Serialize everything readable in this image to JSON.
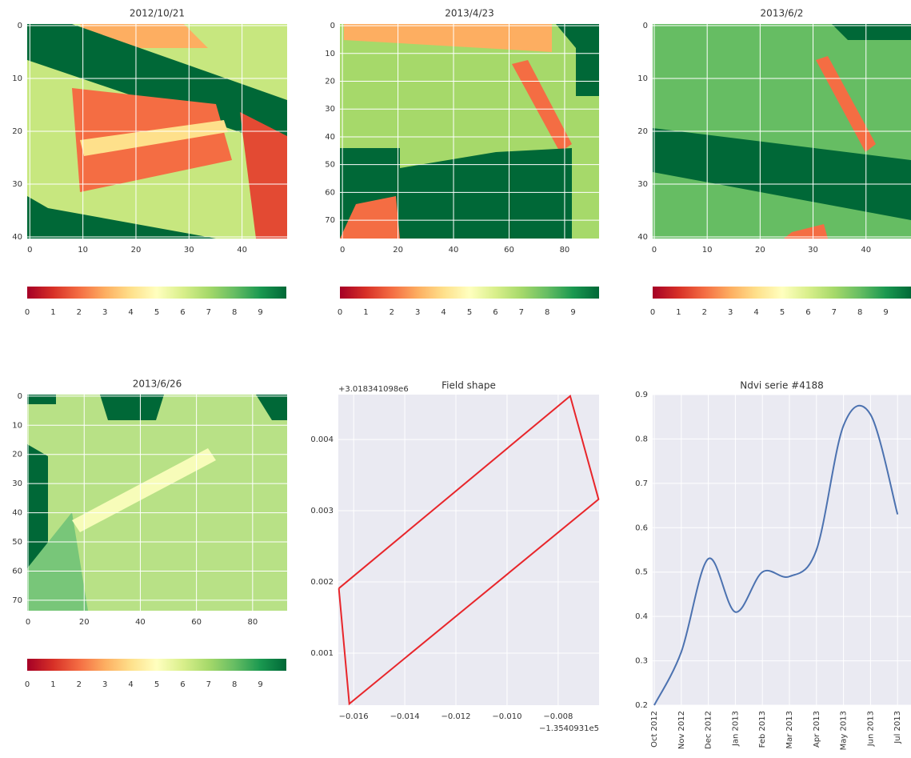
{
  "chart_data": [
    {
      "type": "image",
      "title": "2012/10/21",
      "xlim": [
        -0.5,
        48.5
      ],
      "ylim": [
        40.3,
        -0.3
      ],
      "xticks": [
        0,
        10,
        20,
        30,
        40
      ],
      "yticks": [
        0,
        10,
        20,
        30,
        40
      ],
      "grid": true,
      "colorbar": {
        "lim": [
          0,
          10
        ],
        "ticks": [
          0,
          1,
          2,
          3,
          4,
          5,
          6,
          7,
          8,
          9
        ]
      }
    },
    {
      "type": "image",
      "title": "2013/4/23",
      "xlim": [
        -0.9,
        92.4
      ],
      "ylim": [
        76.6,
        -0.6
      ],
      "xticks": [
        0,
        20,
        40,
        60,
        80
      ],
      "yticks": [
        0,
        10,
        20,
        30,
        40,
        50,
        60,
        70
      ],
      "grid": true,
      "colorbar": {
        "lim": [
          0,
          10
        ],
        "ticks": [
          0,
          1,
          2,
          3,
          4,
          5,
          6,
          7,
          8,
          9
        ]
      }
    },
    {
      "type": "image",
      "title": "2013/6/2",
      "xlim": [
        -0.3,
        48.5
      ],
      "ylim": [
        40.3,
        -0.3
      ],
      "xticks": [
        0,
        10,
        20,
        30,
        40
      ],
      "yticks": [
        0,
        10,
        20,
        30,
        40
      ],
      "grid": true,
      "colorbar": {
        "lim": [
          0,
          10
        ],
        "ticks": [
          0,
          1,
          2,
          3,
          4,
          5,
          6,
          7,
          8,
          9
        ]
      }
    },
    {
      "type": "image",
      "title": "2013/6/26",
      "xlim": [
        -0.3,
        92.3
      ],
      "ylim": [
        73.6,
        -0.5
      ],
      "xticks": [
        0,
        20,
        40,
        60,
        80
      ],
      "yticks": [
        0,
        10,
        20,
        30,
        40,
        50,
        60,
        70
      ],
      "grid": true,
      "colorbar": {
        "lim": [
          0,
          10
        ],
        "ticks": [
          0,
          1,
          2,
          3,
          4,
          5,
          6,
          7,
          8,
          9
        ]
      }
    },
    {
      "type": "line",
      "title": "Field shape",
      "y_offset_label": "+3.018341098e6",
      "x_offset_label": "−1.3540931e5",
      "color": "#e8262b",
      "x": [
        -0.01658,
        -0.00753,
        -0.00642,
        -0.01617,
        -0.01658
      ],
      "values": [
        0.00191,
        0.00461,
        0.00316,
        0.00029,
        0.00191
      ],
      "xlim": [
        -0.0166,
        -0.0064
      ],
      "ylim": [
        0.00027,
        0.00463
      ],
      "xticks": [
        {
          "value": -0.016,
          "label": "−0.016"
        },
        {
          "value": -0.014,
          "label": "−0.014"
        },
        {
          "value": -0.012,
          "label": "−0.012"
        },
        {
          "value": -0.01,
          "label": "−0.010"
        },
        {
          "value": -0.008,
          "label": "−0.008"
        }
      ],
      "yticks": [
        0.001,
        0.002,
        0.003,
        0.004
      ],
      "grid": true
    },
    {
      "type": "line",
      "title": "Ndvi serie #4188",
      "color": "#4c72b0",
      "categories": [
        "Oct 2012",
        "Nov 2012",
        "Dec 2012",
        "Jan 2013",
        "Feb 2013",
        "Mar 2013",
        "Apr 2013",
        "May 2013",
        "Jun 2013",
        "Jul 2013"
      ],
      "values": [
        0.2,
        0.32,
        0.53,
        0.41,
        0.5,
        0.49,
        0.55,
        0.83,
        0.855,
        0.63
      ],
      "ylim": [
        0.2,
        0.9
      ],
      "yticks": [
        0.2,
        0.3,
        0.4,
        0.5,
        0.6,
        0.7,
        0.8,
        0.9
      ],
      "grid": true
    }
  ]
}
